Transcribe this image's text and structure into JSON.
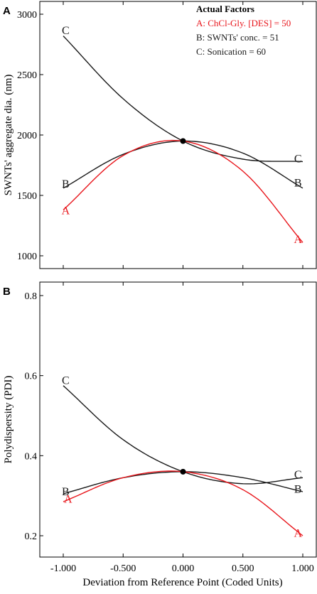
{
  "colors": {
    "factor_a": "#e8151b",
    "others": "#1a1a1a",
    "frame": "#000000"
  },
  "x_axis_title": "Deviation from Reference Point (Coded Units)",
  "x_tick_labels": [
    "-1.000",
    "-0.500",
    "0.000",
    "0.500",
    "1.000"
  ],
  "chart_data": [
    {
      "type": "line",
      "panel_label": "A",
      "ylabel": "SWNTs' aggregate dia. (nm)",
      "xlim": [
        -1,
        1
      ],
      "ylim": [
        900,
        3000
      ],
      "y_ticks": [
        1000,
        1500,
        2000,
        2500,
        3000
      ],
      "y_tick_labels": [
        "1000",
        "1500",
        "2000",
        "2500",
        "3000"
      ],
      "legend": {
        "title": "Actual Factors",
        "entries": [
          "A: ChCl-Gly. [DES] = 50",
          "B: SWNTs' conc. = 51",
          "C: Sonication = 60"
        ]
      },
      "reference_point": {
        "x": 0,
        "y": 1950
      },
      "series": [
        {
          "name": "A",
          "color": "#e8151b",
          "x": [
            -1,
            -0.5,
            0,
            0.5,
            1
          ],
          "y": [
            1380,
            1830,
            1950,
            1700,
            1110
          ]
        },
        {
          "name": "B",
          "color": "#1a1a1a",
          "x": [
            -1,
            -0.5,
            0,
            0.5,
            1
          ],
          "y": [
            1560,
            1840,
            1950,
            1850,
            1560
          ]
        },
        {
          "name": "C",
          "color": "#1a1a1a",
          "x": [
            -1,
            -0.5,
            0,
            0.5,
            1
          ],
          "y": [
            2820,
            2300,
            1950,
            1800,
            1780
          ]
        }
      ],
      "curve_labels": [
        {
          "text": "C",
          "x": -0.98,
          "y": 2870
        },
        {
          "text": "B",
          "x": -0.98,
          "y": 1600
        },
        {
          "text": "A",
          "x": -0.98,
          "y": 1380
        },
        {
          "text": "C",
          "x": 0.96,
          "y": 1810
        },
        {
          "text": "B",
          "x": 0.96,
          "y": 1610
        },
        {
          "text": "A",
          "x": 0.96,
          "y": 1140
        }
      ]
    },
    {
      "type": "line",
      "panel_label": "B",
      "ylabel": "Polydispersity (PDI)",
      "xlim": [
        -1,
        1
      ],
      "ylim": [
        0.18,
        0.84
      ],
      "y_ticks": [
        0.2,
        0.4,
        0.6,
        0.8
      ],
      "y_tick_labels": [
        "0.2",
        "0.4",
        "0.6",
        "0.8"
      ],
      "reference_point": {
        "x": 0,
        "y": 0.36
      },
      "series": [
        {
          "name": "A",
          "color": "#e8151b",
          "x": [
            -1,
            -0.5,
            0,
            0.5,
            1
          ],
          "y": [
            0.285,
            0.345,
            0.36,
            0.315,
            0.2
          ]
        },
        {
          "name": "B",
          "color": "#1a1a1a",
          "x": [
            -1,
            -0.5,
            0,
            0.5,
            1
          ],
          "y": [
            0.305,
            0.345,
            0.36,
            0.345,
            0.31
          ]
        },
        {
          "name": "C",
          "color": "#1a1a1a",
          "x": [
            -1,
            -0.5,
            0,
            0.5,
            1
          ],
          "y": [
            0.575,
            0.44,
            0.36,
            0.33,
            0.345
          ]
        }
      ],
      "curve_labels": [
        {
          "text": "C",
          "x": -0.98,
          "y": 0.59
        },
        {
          "text": "B",
          "x": -0.98,
          "y": 0.312
        },
        {
          "text": "A",
          "x": -0.96,
          "y": 0.293
        },
        {
          "text": "C",
          "x": 0.96,
          "y": 0.354
        },
        {
          "text": "B",
          "x": 0.96,
          "y": 0.318
        },
        {
          "text": "A",
          "x": 0.96,
          "y": 0.208
        }
      ]
    }
  ]
}
